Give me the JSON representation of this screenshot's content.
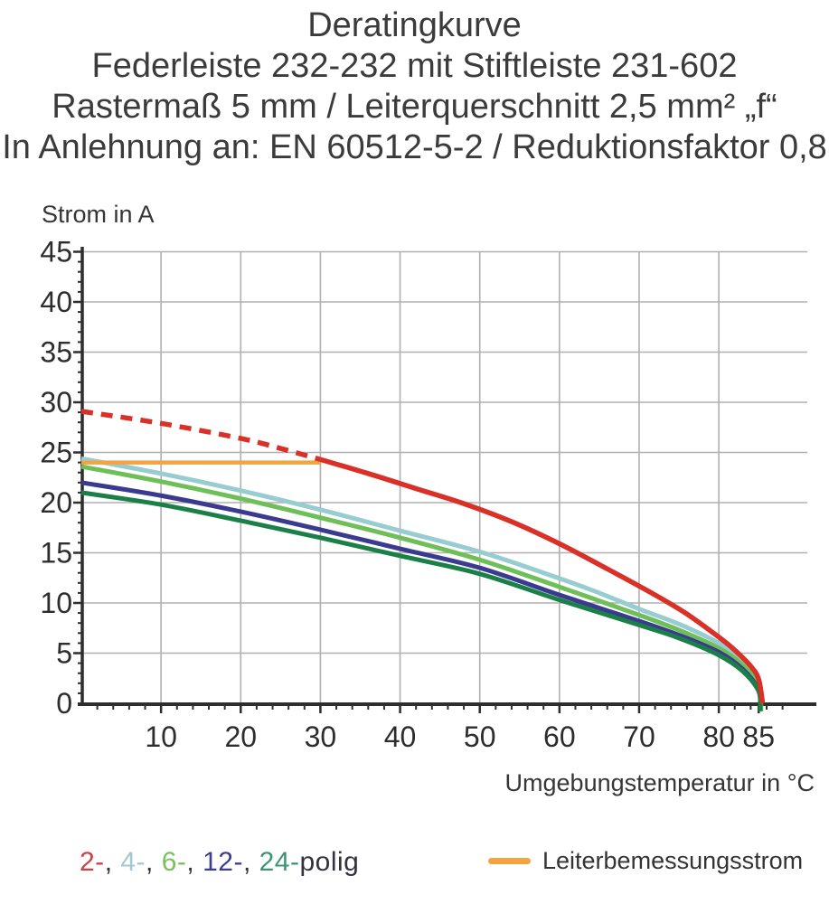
{
  "header": {
    "lines": [
      "Deratingkurve",
      "Federleiste 232-232 mit Stiftleiste 231-602",
      "Rastermaß 5 mm / Leiterquerschnitt 2,5 mm² „f“",
      "In Anlehnung an: EN 60512-5-2 / Reduktionsfaktor 0,8"
    ]
  },
  "chart_data": {
    "type": "line",
    "title": "Deratingkurve",
    "xlabel": "Umgebungstemperatur in °C",
    "ylabel": "Strom in A",
    "xlim": [
      0,
      91
    ],
    "ylim": [
      0,
      45
    ],
    "x_major_ticks": [
      10,
      20,
      30,
      40,
      50,
      60,
      70,
      80,
      85
    ],
    "x_minor_tick_step": 2,
    "y_major_ticks": [
      0,
      5,
      10,
      15,
      20,
      25,
      30,
      35,
      40,
      45
    ],
    "y_minor_tick_step": 1,
    "grid": {
      "x_step": 10,
      "y_step": 5
    },
    "legend_position": "bottom",
    "series": [
      {
        "name": "2-polig gestrichelt",
        "color": "#d93128",
        "style": "dashed",
        "width": 5.5,
        "points": [
          [
            0,
            29.1
          ],
          [
            10,
            27.9
          ],
          [
            20,
            26.4
          ],
          [
            25,
            25.4
          ],
          [
            30,
            24.3
          ]
        ]
      },
      {
        "name": "2-polig",
        "color": "#d93128",
        "style": "solid",
        "width": 5.5,
        "points": [
          [
            30,
            24.3
          ],
          [
            36,
            22.9
          ],
          [
            42,
            21.4
          ],
          [
            48,
            19.9
          ],
          [
            54,
            18.1
          ],
          [
            60,
            15.9
          ],
          [
            66,
            13.4
          ],
          [
            72,
            10.8
          ],
          [
            76,
            8.9
          ],
          [
            80,
            6.6
          ],
          [
            82,
            5.3
          ],
          [
            84,
            3.7
          ],
          [
            85,
            2.4
          ],
          [
            85.5,
            0
          ]
        ]
      },
      {
        "name": "4-polig",
        "color": "#97ccd1",
        "style": "solid",
        "width": 5,
        "points": [
          [
            0,
            24.4
          ],
          [
            10,
            22.9
          ],
          [
            20,
            21.2
          ],
          [
            30,
            19.3
          ],
          [
            40,
            17.2
          ],
          [
            50,
            15.1
          ],
          [
            58,
            13.0
          ],
          [
            64,
            11.3
          ],
          [
            70,
            9.4
          ],
          [
            75,
            7.9
          ],
          [
            80,
            6.0
          ],
          [
            83,
            4.2
          ],
          [
            85,
            2.0
          ],
          [
            85.3,
            0
          ]
        ]
      },
      {
        "name": "6-polig",
        "color": "#6fbf58",
        "style": "solid",
        "width": 5,
        "points": [
          [
            0,
            23.6
          ],
          [
            10,
            22.1
          ],
          [
            20,
            20.4
          ],
          [
            30,
            18.5
          ],
          [
            40,
            16.5
          ],
          [
            50,
            14.3
          ],
          [
            60,
            11.6
          ],
          [
            70,
            8.8
          ],
          [
            75,
            7.3
          ],
          [
            80,
            5.5
          ],
          [
            83,
            3.8
          ],
          [
            85,
            1.7
          ],
          [
            85.3,
            -0.8
          ]
        ]
      },
      {
        "name": "12-polig",
        "color": "#3a3a8e",
        "style": "solid",
        "width": 5,
        "points": [
          [
            0,
            22.0
          ],
          [
            10,
            20.7
          ],
          [
            20,
            19.1
          ],
          [
            30,
            17.3
          ],
          [
            40,
            15.4
          ],
          [
            50,
            13.5
          ],
          [
            60,
            10.8
          ],
          [
            70,
            8.2
          ],
          [
            75,
            6.8
          ],
          [
            80,
            5.1
          ],
          [
            83,
            3.4
          ],
          [
            85,
            1.4
          ],
          [
            85.2,
            0
          ]
        ]
      },
      {
        "name": "24-polig",
        "color": "#1b8048",
        "style": "solid",
        "width": 5,
        "points": [
          [
            0,
            21.0
          ],
          [
            10,
            19.8
          ],
          [
            20,
            18.2
          ],
          [
            30,
            16.5
          ],
          [
            40,
            14.7
          ],
          [
            50,
            12.9
          ],
          [
            60,
            10.3
          ],
          [
            70,
            7.8
          ],
          [
            75,
            6.5
          ],
          [
            80,
            4.8
          ],
          [
            83,
            3.2
          ],
          [
            85,
            1.2
          ],
          [
            85.2,
            -0.8
          ]
        ]
      },
      {
        "name": "Leiterbemessungsstrom",
        "color": "#f3a441",
        "style": "solid",
        "width": 4.5,
        "points": [
          [
            0,
            24
          ],
          [
            30,
            24
          ]
        ]
      }
    ]
  },
  "legend": {
    "pole_items": [
      {
        "label": "2-",
        "color": "#cf4044"
      },
      {
        "label": "4-",
        "color": "#a3c8cf"
      },
      {
        "label": "6-",
        "color": "#79c05e"
      },
      {
        "label": "12-",
        "color": "#3c3d8e"
      },
      {
        "label": "24-",
        "color": "#3d9478"
      }
    ],
    "separator": ", ",
    "suffix": "polig",
    "suffix_color": "#33333d",
    "rated_current_label": "Leiterbemessungsstrom",
    "rated_current_color": "#f3a441"
  },
  "colors": {
    "axis": "#2e2e2e",
    "grid": "#b0b0b0",
    "tick_text": "#2d2d2d",
    "background": "#ffffff"
  }
}
